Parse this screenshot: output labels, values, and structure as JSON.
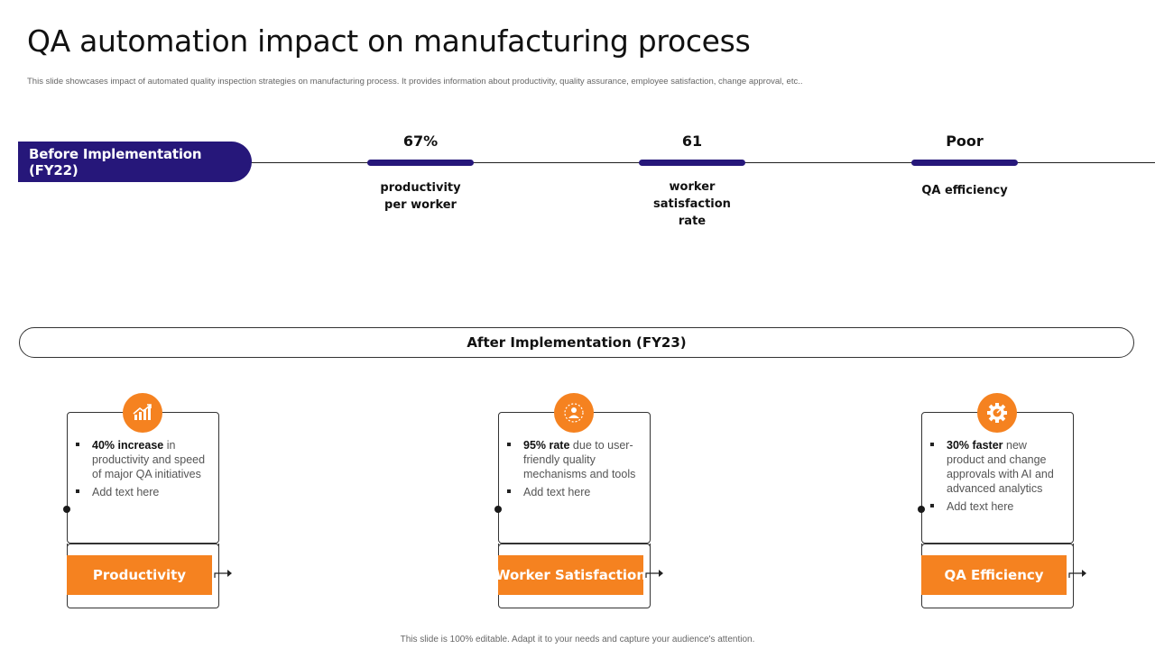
{
  "page": {
    "title": "QA automation impact on manufacturing process",
    "subtitle": "This slide showcases impact of automated quality inspection strategies on manufacturing process. It provides information about productivity, quality assurance, employee satisfaction, change approval, etc..",
    "footer": "This slide is 100% editable.  Adapt it to your needs and capture your audience's attention."
  },
  "before": {
    "label": "Before Implementation (FY22)",
    "metrics": [
      {
        "value": "67%",
        "label": "productivity\nper worker"
      },
      {
        "value": "61",
        "label": "worker\nsatisfaction  rate"
      },
      {
        "value": "Poor",
        "label": "QA efficiency"
      }
    ]
  },
  "after": {
    "label": "After Implementation (FY23)",
    "cards": [
      {
        "icon": "growth-chart-icon",
        "highlight": "40%  increase",
        "text": " in productivity  and speed  of major QA initiatives",
        "extra": "Add text here",
        "label": "Productivity"
      },
      {
        "icon": "people-satisfaction-icon",
        "highlight": "95%  rate",
        "text": " due to user-friendly  quality mechanisms and tools",
        "extra": "Add text here",
        "label": "Worker Satisfaction"
      },
      {
        "icon": "gear-speed-icon",
        "highlight": "30%  faster",
        "text": " new product and change approvals  with AI and advanced  analytics",
        "extra": "Add text here",
        "label": "QA Efficiency"
      }
    ]
  },
  "colors": {
    "accent_purple": "#26177a",
    "accent_orange": "#f58220"
  }
}
